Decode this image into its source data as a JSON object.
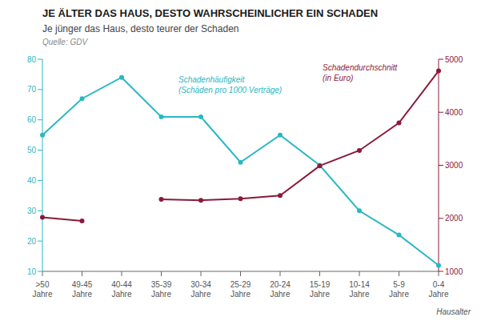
{
  "chart_data": {
    "type": "line",
    "title": "JE ÄLTER DAS HAUS, DESTO WAHRSCHEINLICHER EIN SCHADEN",
    "subtitle": "Je jünger das Haus, desto teurer der Schaden",
    "source": "Quelle: GDV",
    "xlabel": "Hausalter",
    "categories": [
      ">50\nJahre",
      "49-45\nJahre",
      "40-44\nJahre",
      "35-39\nJahre",
      "30-34\nJahre",
      "25-29\nJahre",
      "20-24\nJahre",
      "15-19\nJahre",
      "10-14\nJahre",
      "5-9\nJahre",
      "0-4\nJahre"
    ],
    "series": [
      {
        "name": "Schadenhäufigkeit\n(Schäden pro 1000 Verträge)",
        "color": "#29B8C2",
        "marker": "circle",
        "values": [
          55,
          67,
          74,
          61,
          61,
          46,
          55,
          45,
          30,
          22,
          12
        ]
      },
      {
        "name": "Schadendurchschnitt\n(in Euro)",
        "color": "#8B1A3A",
        "marker": "circle",
        "axis": "y2",
        "values": [
          2020,
          1950,
          null,
          2360,
          2340,
          2370,
          2430,
          2990,
          3280,
          3800,
          4780
        ]
      }
    ],
    "ylim": [
      10,
      80
    ],
    "yticks": [
      10,
      20,
      30,
      40,
      50,
      60,
      70,
      80
    ],
    "y2lim": [
      1000,
      5000
    ],
    "y2ticks": [
      1000,
      2000,
      3000,
      4000,
      5000
    ],
    "grid": false
  }
}
